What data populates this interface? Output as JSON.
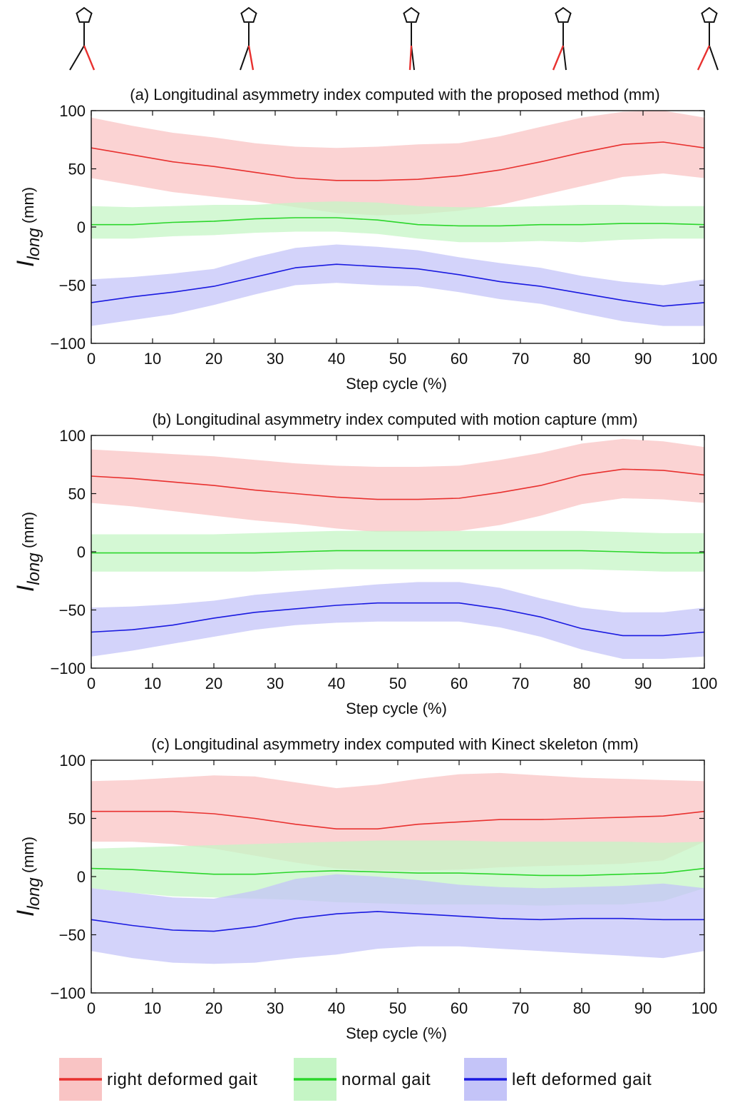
{
  "figure": {
    "stick_figures": [
      "stance-phase-1",
      "stance-phase-2",
      "stance-phase-3",
      "stance-phase-4",
      "stance-phase-5"
    ]
  },
  "chart_data": [
    {
      "type": "line",
      "title": "(a) Longitudinal asymmetry index computed with the proposed method (mm)",
      "xlabel": "Step cycle (%)",
      "ylabel_main": "I",
      "ylabel_sub": "long",
      "ylabel_unit": " (mm)",
      "xlim": [
        0,
        100
      ],
      "ylim": [
        -100,
        100
      ],
      "xticks": [
        0,
        10,
        20,
        30,
        40,
        50,
        60,
        70,
        80,
        90,
        100
      ],
      "yticks": [
        -100,
        -50,
        0,
        50,
        100
      ],
      "x": [
        0,
        6.7,
        13.3,
        20,
        26.7,
        33.3,
        40,
        46.7,
        53.3,
        60,
        66.7,
        73.3,
        80,
        86.7,
        93.3,
        100
      ],
      "series": [
        {
          "name": "right deformed gait",
          "color": "#e8312f",
          "band": "#f9c4c4",
          "values": [
            68,
            62,
            56,
            52,
            47,
            42,
            40,
            40,
            41,
            44,
            49,
            56,
            64,
            71,
            73,
            68
          ],
          "lower": [
            42,
            36,
            30,
            26,
            22,
            17,
            12,
            10,
            11,
            14,
            19,
            27,
            35,
            43,
            46,
            42
          ],
          "upper": [
            94,
            87,
            81,
            77,
            72,
            69,
            68,
            69,
            71,
            72,
            78,
            86,
            94,
            99,
            100,
            94
          ]
        },
        {
          "name": "normal gait",
          "color": "#2bd62b",
          "band": "#c5f5c5",
          "values": [
            2,
            2,
            4,
            5,
            7,
            8,
            8,
            6,
            2,
            1,
            1,
            2,
            2,
            3,
            3,
            2
          ],
          "lower": [
            -10,
            -10,
            -8,
            -7,
            -5,
            -4,
            -4,
            -6,
            -10,
            -13,
            -13,
            -12,
            -13,
            -11,
            -10,
            -10
          ],
          "upper": [
            18,
            17,
            18,
            19,
            19,
            21,
            22,
            21,
            18,
            17,
            17,
            18,
            19,
            19,
            18,
            18
          ]
        },
        {
          "name": "left deformed gait",
          "color": "#1a1ae0",
          "band": "#c4c4f8",
          "values": [
            -65,
            -60,
            -56,
            -51,
            -43,
            -35,
            -32,
            -34,
            -36,
            -41,
            -47,
            -51,
            -57,
            -63,
            -68,
            -65
          ],
          "lower": [
            -85,
            -80,
            -75,
            -67,
            -58,
            -50,
            -48,
            -50,
            -51,
            -56,
            -62,
            -66,
            -74,
            -81,
            -85,
            -85
          ],
          "upper": [
            -45,
            -43,
            -40,
            -36,
            -26,
            -18,
            -15,
            -17,
            -20,
            -26,
            -31,
            -35,
            -42,
            -47,
            -50,
            -45
          ]
        }
      ]
    },
    {
      "type": "line",
      "title": "(b) Longitudinal asymmetry index computed with motion capture (mm)",
      "xlabel": "Step cycle (%)",
      "ylabel_main": "I",
      "ylabel_sub": "long",
      "ylabel_unit": " (mm)",
      "xlim": [
        0,
        100
      ],
      "ylim": [
        -100,
        100
      ],
      "xticks": [
        0,
        10,
        20,
        30,
        40,
        50,
        60,
        70,
        80,
        90,
        100
      ],
      "yticks": [
        -100,
        -50,
        0,
        50,
        100
      ],
      "x": [
        0,
        6.7,
        13.3,
        20,
        26.7,
        33.3,
        40,
        46.7,
        53.3,
        60,
        66.7,
        73.3,
        80,
        86.7,
        93.3,
        100
      ],
      "series": [
        {
          "name": "right deformed gait",
          "color": "#e8312f",
          "band": "#f9c4c4",
          "values": [
            65,
            63,
            60,
            57,
            53,
            50,
            47,
            45,
            45,
            46,
            51,
            57,
            66,
            71,
            70,
            66
          ],
          "lower": [
            42,
            39,
            35,
            31,
            27,
            24,
            20,
            17,
            17,
            18,
            23,
            31,
            41,
            46,
            45,
            42
          ],
          "upper": [
            88,
            86,
            84,
            82,
            79,
            76,
            74,
            73,
            73,
            74,
            79,
            85,
            93,
            97,
            95,
            90
          ]
        },
        {
          "name": "normal gait",
          "color": "#2bd62b",
          "band": "#c5f5c5",
          "values": [
            -1,
            -1,
            -1,
            -1,
            -1,
            0,
            1,
            1,
            1,
            1,
            1,
            1,
            1,
            0,
            -1,
            -1
          ],
          "lower": [
            -17,
            -17,
            -17,
            -17,
            -17,
            -16,
            -15,
            -15,
            -15,
            -15,
            -15,
            -15,
            -15,
            -16,
            -17,
            -17
          ],
          "upper": [
            15,
            15,
            15,
            15,
            16,
            17,
            18,
            18,
            18,
            18,
            18,
            18,
            18,
            17,
            16,
            16
          ]
        },
        {
          "name": "left deformed gait",
          "color": "#1a1ae0",
          "band": "#c4c4f8",
          "values": [
            -69,
            -67,
            -63,
            -57,
            -52,
            -49,
            -46,
            -44,
            -44,
            -44,
            -49,
            -56,
            -66,
            -72,
            -72,
            -69
          ],
          "lower": [
            -90,
            -85,
            -79,
            -73,
            -67,
            -63,
            -61,
            -60,
            -60,
            -60,
            -65,
            -73,
            -84,
            -92,
            -92,
            -90
          ],
          "upper": [
            -48,
            -47,
            -45,
            -42,
            -37,
            -34,
            -31,
            -28,
            -26,
            -26,
            -31,
            -40,
            -48,
            -52,
            -52,
            -48
          ]
        }
      ]
    },
    {
      "type": "line",
      "title": "(c) Longitudinal asymmetry index computed with Kinect skeleton (mm)",
      "xlabel": "Step cycle (%)",
      "ylabel_main": "I",
      "ylabel_sub": "long",
      "ylabel_unit": " (mm)",
      "xlim": [
        0,
        100
      ],
      "ylim": [
        -100,
        100
      ],
      "xticks": [
        0,
        10,
        20,
        30,
        40,
        50,
        60,
        70,
        80,
        90,
        100
      ],
      "yticks": [
        -100,
        -50,
        0,
        50,
        100
      ],
      "x": [
        0,
        6.7,
        13.3,
        20,
        26.7,
        33.3,
        40,
        46.7,
        53.3,
        60,
        66.7,
        73.3,
        80,
        86.7,
        93.3,
        100
      ],
      "series": [
        {
          "name": "right deformed gait",
          "color": "#e8312f",
          "band": "#f9c4c4",
          "values": [
            56,
            56,
            56,
            54,
            50,
            45,
            41,
            41,
            45,
            47,
            49,
            49,
            50,
            51,
            52,
            56
          ],
          "lower": [
            30,
            30,
            28,
            24,
            18,
            12,
            7,
            5,
            5,
            6,
            8,
            9,
            10,
            11,
            14,
            30
          ],
          "upper": [
            82,
            83,
            85,
            87,
            86,
            81,
            76,
            79,
            84,
            88,
            89,
            87,
            85,
            84,
            83,
            82
          ]
        },
        {
          "name": "normal gait",
          "color": "#2bd62b",
          "band": "#c5f5c5",
          "values": [
            7,
            6,
            4,
            2,
            2,
            4,
            5,
            4,
            3,
            3,
            2,
            1,
            1,
            2,
            3,
            7
          ],
          "lower": [
            -10,
            -14,
            -17,
            -18,
            -19,
            -20,
            -22,
            -23,
            -24,
            -24,
            -24,
            -25,
            -24,
            -24,
            -21,
            -10
          ],
          "upper": [
            24,
            25,
            26,
            27,
            28,
            29,
            30,
            31,
            31,
            31,
            30,
            30,
            30,
            30,
            29,
            30
          ]
        },
        {
          "name": "left deformed gait",
          "color": "#1a1ae0",
          "band": "#c4c4f8",
          "values": [
            -37,
            -42,
            -46,
            -47,
            -43,
            -36,
            -32,
            -30,
            -32,
            -34,
            -36,
            -37,
            -36,
            -36,
            -37,
            -37
          ],
          "lower": [
            -64,
            -70,
            -74,
            -75,
            -74,
            -70,
            -67,
            -62,
            -60,
            -60,
            -62,
            -64,
            -66,
            -68,
            -70,
            -64
          ],
          "upper": [
            -10,
            -14,
            -18,
            -19,
            -12,
            -2,
            2,
            0,
            -3,
            -7,
            -9,
            -10,
            -9,
            -8,
            -6,
            -10
          ]
        }
      ]
    }
  ],
  "legend": {
    "items": [
      {
        "label": "right deformed gait",
        "color": "#e8312f",
        "band": "#f9c4c4"
      },
      {
        "label": "normal gait",
        "color": "#2bd62b",
        "band": "#c5f5c5"
      },
      {
        "label": "left deformed gait",
        "color": "#1a1ae0",
        "band": "#c4c4f8"
      }
    ]
  }
}
